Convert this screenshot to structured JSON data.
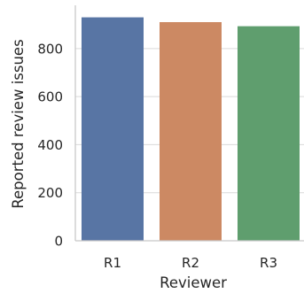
{
  "chart_data": {
    "type": "bar",
    "categories": [
      "R1",
      "R2",
      "R3"
    ],
    "values": [
      930,
      910,
      893
    ],
    "colors": [
      "#5875a4",
      "#cc8963",
      "#5f9e6e"
    ],
    "xlabel": "Reviewer",
    "ylabel": "Reported review issues",
    "ylim": [
      0,
      980
    ],
    "yticks": [
      0,
      200,
      400,
      600,
      800
    ],
    "grid": true,
    "legend": "none"
  }
}
